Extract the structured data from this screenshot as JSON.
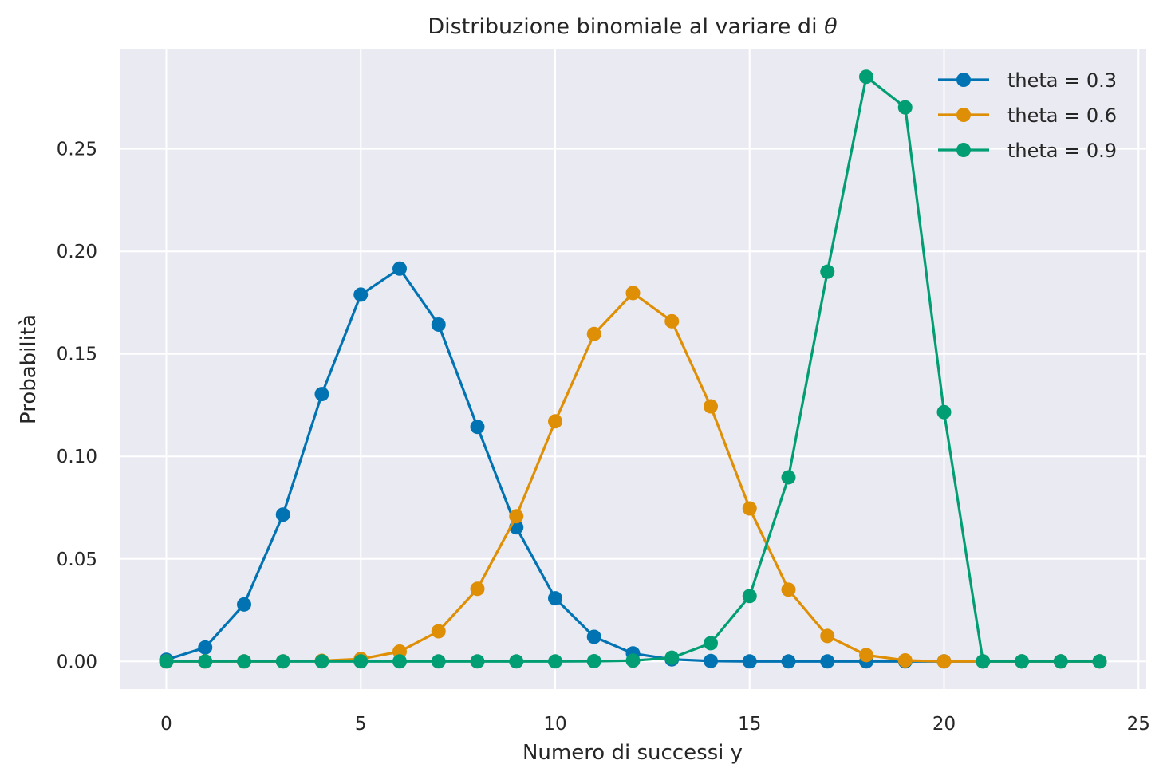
{
  "chart_data": {
    "type": "line",
    "title": "Distribuzione binomiale al variare di ",
    "title_symbol": "θ",
    "xlabel": "Numero di successi y",
    "ylabel": "Probabilità",
    "xlim": [
      -1.2,
      25.2
    ],
    "ylim": [
      -0.0135,
      0.2985
    ],
    "x_ticks": [
      0,
      5,
      10,
      15,
      20,
      25
    ],
    "y_ticks": [
      0.0,
      0.05,
      0.1,
      0.15,
      0.2,
      0.25
    ],
    "x_tick_labels": [
      "0",
      "5",
      "10",
      "15",
      "20",
      "25"
    ],
    "y_tick_labels": [
      "0.00",
      "0.05",
      "0.10",
      "0.15",
      "0.20",
      "0.25"
    ],
    "grid": true,
    "legend_position": "top-right",
    "x": [
      0,
      1,
      2,
      3,
      4,
      5,
      6,
      7,
      8,
      9,
      10,
      11,
      12,
      13,
      14,
      15,
      16,
      17,
      18,
      19,
      20,
      21,
      22,
      23,
      24
    ],
    "series": [
      {
        "name": "theta = 0.3",
        "color": "#0173b2",
        "values": [
          0.0008,
          0.0068,
          0.0278,
          0.0716,
          0.1304,
          0.1789,
          0.1916,
          0.1643,
          0.1144,
          0.0654,
          0.0308,
          0.012,
          0.0039,
          0.001,
          0.0002,
          0.0,
          0.0,
          0.0,
          0.0,
          0.0,
          0.0,
          0.0,
          0.0,
          0.0,
          0.0
        ]
      },
      {
        "name": "theta = 0.6",
        "color": "#de8f05",
        "values": [
          0.0,
          0.0,
          0.0,
          0.0,
          0.0003,
          0.0012,
          0.0048,
          0.0147,
          0.0354,
          0.0708,
          0.1171,
          0.1597,
          0.1797,
          0.1659,
          0.1244,
          0.0746,
          0.035,
          0.0124,
          0.0031,
          0.0005,
          0.0,
          0.0,
          0.0,
          0.0,
          0.0
        ]
      },
      {
        "name": "theta = 0.9",
        "color": "#029e73",
        "values": [
          0.0,
          0.0,
          0.0,
          0.0,
          0.0,
          0.0,
          0.0,
          0.0,
          0.0,
          0.0,
          0.0,
          0.0001,
          0.0004,
          0.0018,
          0.0089,
          0.0319,
          0.0898,
          0.1901,
          0.2852,
          0.2702,
          0.1216,
          0.0,
          0.0,
          0.0,
          0.0
        ]
      }
    ]
  }
}
